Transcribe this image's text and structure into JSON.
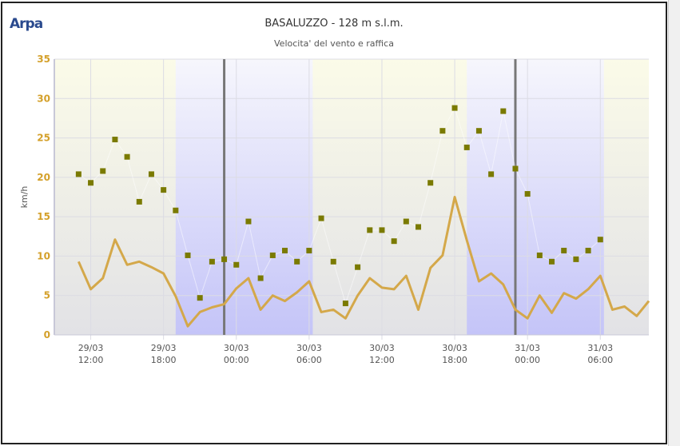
{
  "logo": "Arpa",
  "title": "BASALUZZO - 128 m s.l.m.",
  "subtitle": "Velocita' del vento e raffica",
  "chart_data": {
    "type": "line",
    "title": "BASALUZZO - 128 m s.l.m.",
    "subtitle": "Velocita' del vento e raffica",
    "ylabel": "km/h",
    "ylim": [
      0,
      35
    ],
    "yticks": [
      0,
      5,
      10,
      15,
      20,
      25,
      30,
      35
    ],
    "xlim_hours": [
      9,
      58
    ],
    "xticks": [
      {
        "h": 12,
        "l1": "29/03",
        "l2": "12:00"
      },
      {
        "h": 18,
        "l1": "29/03",
        "l2": "18:00"
      },
      {
        "h": 24,
        "l1": "30/03",
        "l2": "00:00"
      },
      {
        "h": 30,
        "l1": "30/03",
        "l2": "06:00"
      },
      {
        "h": 36,
        "l1": "30/03",
        "l2": "12:00"
      },
      {
        "h": 42,
        "l1": "30/03",
        "l2": "18:00"
      },
      {
        "h": 48,
        "l1": "31/03",
        "l2": "00:00"
      },
      {
        "h": 54,
        "l1": "31/03",
        "l2": "06:00"
      }
    ],
    "night_bands_hours": [
      [
        19,
        30.3
      ],
      [
        43,
        54.3
      ]
    ],
    "day_markers_hours": [
      23,
      47
    ],
    "x_start_hour": 11,
    "series": [
      {
        "name": "Velocita' del vento",
        "type": "line",
        "color": "#d4a84a",
        "values": [
          9.3,
          5.8,
          7.2,
          12.1,
          8.9,
          9.3,
          8.6,
          7.8,
          4.9,
          1.1,
          2.9,
          3.5,
          3.9,
          5.9,
          7.2,
          3.2,
          5.0,
          4.3,
          5.4,
          6.8,
          2.9,
          3.2,
          2.1,
          5.0,
          7.2,
          6.0,
          5.8,
          7.5,
          3.2,
          8.5,
          10.1,
          17.5,
          12.0,
          6.8,
          7.8,
          6.4,
          3.2,
          2.1,
          5.0,
          2.8,
          5.3,
          4.6,
          5.8,
          7.5,
          3.2,
          3.6,
          2.4,
          4.3
        ]
      },
      {
        "name": "Raffica",
        "type": "scatter",
        "color": "#7a7a00",
        "values": [
          20.4,
          19.3,
          20.8,
          24.8,
          22.6,
          16.9,
          20.4,
          18.4,
          15.8,
          10.1,
          4.7,
          9.3,
          9.6,
          8.9,
          14.4,
          7.2,
          10.1,
          10.7,
          9.3,
          10.7,
          14.8,
          9.3,
          4.0,
          8.6,
          13.3,
          13.3,
          11.9,
          14.4,
          13.7,
          19.3,
          25.9,
          28.8,
          23.8,
          25.9,
          20.4,
          28.4,
          21.1,
          17.9,
          10.1,
          9.3,
          10.7,
          9.6,
          10.7,
          12.1,
          null,
          null,
          null,
          null
        ]
      }
    ]
  }
}
